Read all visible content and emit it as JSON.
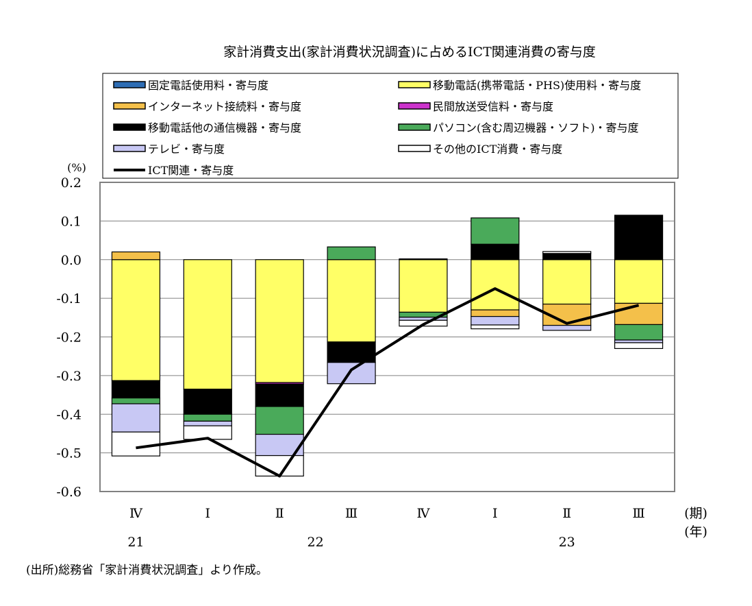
{
  "title": "家計消費支出(家計消費状況調査)に占めるICT関連消費の寄与度",
  "source": "(出所)総務省「家計消費状況調査」より作成。",
  "chart_data": {
    "type": "bar",
    "stacked": true,
    "title": "家計消費支出(家計消費状況調査)に占めるICT関連消費の寄与度",
    "ylabel": "(%)",
    "ylim": [
      -0.6,
      0.2
    ],
    "yticks": [
      "0.2",
      "0.1",
      "0.0",
      "-0.1",
      "-0.2",
      "-0.3",
      "-0.4",
      "-0.5",
      "-0.6"
    ],
    "grid": true,
    "legend_position": "top",
    "categories": [
      "Ⅳ",
      "Ⅰ",
      "Ⅱ",
      "Ⅲ",
      "Ⅳ",
      "Ⅰ",
      "Ⅱ",
      "Ⅲ"
    ],
    "x_unit_label": "(期)",
    "years": [
      {
        "label": "21",
        "index": 0
      },
      {
        "label": "22",
        "index": 2.5
      },
      {
        "label": "23",
        "index": 6
      }
    ],
    "year_unit_label": "(年)",
    "series": [
      {
        "name": "固定電話使用料・寄与度",
        "color": "#2e6db4",
        "values": [
          0,
          0,
          0,
          0,
          0,
          0,
          0,
          0
        ]
      },
      {
        "name": "移動電話(携帯電話・PHS)使用料・寄与度",
        "color": "#ffff66",
        "values": [
          -0.313,
          -0.335,
          -0.318,
          -0.213,
          -0.136,
          -0.13,
          -0.115,
          -0.113
        ]
      },
      {
        "name": "インターネット接続料・寄与度",
        "color": "#f4c04a",
        "values": [
          0.02,
          0,
          0,
          0,
          0,
          -0.017,
          -0.055,
          -0.055
        ]
      },
      {
        "name": "民間放送受信料・寄与度",
        "color": "#cc33cc",
        "values": [
          0,
          0,
          -0.004,
          0,
          0,
          0,
          0,
          0
        ]
      },
      {
        "name": "移動電話他の通信機器・寄与度",
        "color": "#000000",
        "values": [
          -0.045,
          -0.065,
          -0.058,
          -0.053,
          0.002,
          0.04,
          0.016,
          0.115
        ]
      },
      {
        "name": "パソコン(含む周辺機器・ソフト)・寄与度",
        "color": "#4aaa5a",
        "values": [
          -0.015,
          -0.018,
          -0.072,
          0.033,
          -0.013,
          0.068,
          0,
          -0.04
        ]
      },
      {
        "name": "テレビ・寄与度",
        "color": "#c8c8f4",
        "values": [
          -0.073,
          -0.012,
          -0.055,
          -0.055,
          -0.008,
          -0.022,
          -0.013,
          -0.007
        ]
      },
      {
        "name": "その他のICT消費・寄与度",
        "color": "#ffffff",
        "values": [
          -0.062,
          -0.035,
          -0.053,
          0,
          -0.015,
          -0.01,
          0.005,
          -0.015
        ]
      }
    ],
    "line": {
      "name": "ICT関連・寄与度",
      "color": "#000000",
      "values": [
        -0.487,
        -0.462,
        -0.56,
        -0.285,
        -0.168,
        -0.075,
        -0.165,
        -0.118
      ]
    }
  }
}
